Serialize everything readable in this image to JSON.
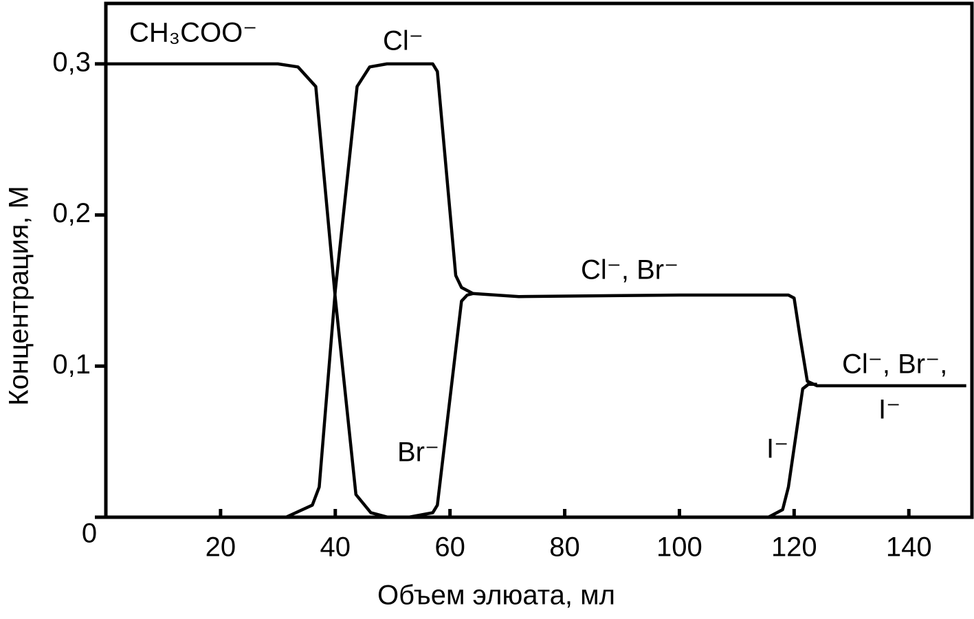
{
  "chart_data": {
    "type": "line",
    "xlabel": "Объем элюата, мл",
    "ylabel": "Концентрация, М",
    "xlim": [
      0,
      151
    ],
    "ylim": [
      0,
      0.34
    ],
    "xticks": [
      20,
      40,
      60,
      80,
      100,
      120,
      140
    ],
    "yticks": [
      0,
      {
        "value": 0.1,
        "label": "0,1"
      },
      {
        "value": 0.2,
        "label": "0,2"
      },
      {
        "value": 0.3,
        "label": "0,3"
      }
    ],
    "series": [
      {
        "color": "#000000",
        "x": [
          0,
          20,
          30,
          33.5,
          36.6,
          40,
          43.6,
          46.2,
          49.2
        ],
        "values": [
          0.3,
          0.3,
          0.3,
          0.298,
          0.285,
          0.145,
          0.015,
          0.003,
          0
        ]
      },
      {
        "color": "#000000",
        "x": [
          31.4,
          36,
          37.2,
          40,
          43.8,
          46,
          49,
          57,
          57.8,
          61,
          62,
          64
        ],
        "values": [
          0,
          0.008,
          0.02,
          0.15,
          0.285,
          0.298,
          0.3,
          0.3,
          0.295,
          0.16,
          0.152,
          0.148
        ]
      },
      {
        "color": "#000000",
        "x": [
          52.8,
          57,
          57.8,
          62,
          63,
          64,
          72,
          100,
          119,
          120,
          121,
          122.3,
          124,
          150
        ],
        "values": [
          0,
          0.003,
          0.008,
          0.143,
          0.147,
          0.148,
          0.146,
          0.147,
          0.147,
          0.145,
          0.12,
          0.09,
          0.087,
          0.087
        ]
      },
      {
        "color": "#000000",
        "x": [
          115.5,
          118,
          119,
          121.5,
          122.5,
          124
        ],
        "values": [
          0,
          0.005,
          0.02,
          0.085,
          0.088,
          0.088
        ]
      }
    ],
    "annotations": [
      "CH₃COO⁻",
      "Cl⁻",
      "Cl⁻, Br⁻",
      "Cl⁻, Br⁻,",
      "I⁻",
      "Br⁻",
      "I⁻"
    ]
  }
}
